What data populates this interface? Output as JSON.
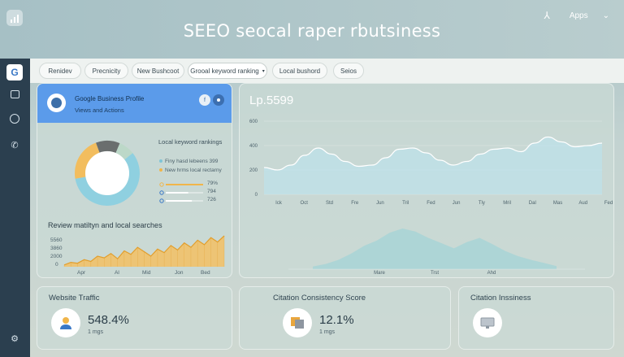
{
  "header": {
    "title": "SEEO seocal raper rbutsiness",
    "apps_label": "Apps",
    "apps_icon": "person-icon",
    "chevron_icon": "chevron-down-icon"
  },
  "sidebar": {
    "items": [
      {
        "icon": "google-g-icon",
        "glyph": "G",
        "active": true
      },
      {
        "icon": "calendar-icon",
        "glyph": "▦",
        "active": false
      },
      {
        "icon": "bolt-icon",
        "glyph": "ϟ",
        "active": false
      },
      {
        "icon": "phone-icon",
        "glyph": "✆",
        "active": false
      },
      {
        "icon": "settings-icon",
        "glyph": "⚙",
        "active": false
      }
    ]
  },
  "toolbar": {
    "chips": [
      {
        "label": "Renidev"
      },
      {
        "label": "Precnicity"
      },
      {
        "label": "New Bushcoot"
      },
      {
        "label": "Grooal keyword ranking"
      },
      {
        "label": "Local bushord"
      },
      {
        "label": "Seios"
      }
    ],
    "dropdown_icon": "chevron-down-icon"
  },
  "profile_card": {
    "title": "Google Business Profile",
    "subtitle": "Views and Actions",
    "badge_1": "f",
    "badge_2": "",
    "keyword_heading": "Local keyword rankings",
    "legend": [
      {
        "label": "Finy hasd lebeens 399",
        "color": "#7fc4d6"
      },
      {
        "label": "New hrms local rectarny",
        "color": "#f0b54a"
      }
    ],
    "bars": [
      {
        "value": "79%",
        "fill": 1.0,
        "color": "#f0b54a"
      },
      {
        "value": "794",
        "fill": 0.6,
        "color": "#ffffff"
      },
      {
        "value": "726",
        "fill": 0.7,
        "color": "#ffffff"
      }
    ],
    "donut": [
      {
        "value": 58,
        "color": "#8fd0e0"
      },
      {
        "value": 22,
        "color": "#f2bd5e"
      },
      {
        "value": 12,
        "color": "#6a6e6e"
      },
      {
        "value": 8,
        "color": "#bcd8c8"
      }
    ],
    "area_heading": "Review matiltyn and local searches",
    "area_y_ticks": [
      "5560",
      "3860",
      "2000",
      "0"
    ],
    "area_x_ticks": [
      "Apr",
      "Al",
      "Mid",
      "Jon",
      "Bed"
    ],
    "area_values": [
      2,
      5,
      4,
      8,
      6,
      12,
      10,
      15,
      9,
      18,
      14,
      22,
      17,
      12,
      20,
      16,
      24,
      19,
      27,
      22,
      30,
      25,
      33,
      28,
      35
    ]
  },
  "main_card": {
    "title": "Lp.5599",
    "chart_data": {
      "type": "area",
      "y_ticks": [
        "600",
        "400",
        "200",
        "0"
      ],
      "x_ticks": [
        "Ick",
        "Oct",
        "Std",
        "Fre",
        "Jun",
        "Tril",
        "Fed",
        "Jun",
        "Tly",
        "Mril",
        "Dal",
        "Mas",
        "Aud",
        "Fed"
      ],
      "values": [
        220,
        200,
        240,
        320,
        380,
        330,
        270,
        230,
        240,
        300,
        370,
        380,
        340,
        280,
        240,
        270,
        330,
        370,
        380,
        350,
        420,
        470,
        430,
        390,
        400,
        420
      ],
      "ylim": [
        0,
        600
      ]
    },
    "secondary_area": {
      "values": [
        5,
        10,
        18,
        30,
        45,
        55,
        70,
        78,
        72,
        60,
        50,
        40,
        52,
        60,
        48,
        35,
        25,
        18,
        12,
        6
      ],
      "x_ticks": [
        "Mare",
        "Trst",
        "Ahd"
      ]
    }
  },
  "metrics": [
    {
      "title": "Website Traffic",
      "value": "548.4%",
      "sub": "1 mgs",
      "icon": "user-icon"
    },
    {
      "title": "Citation Consistency Score",
      "value": "12.1%",
      "sub": "1 mgs",
      "icon": "documents-icon"
    },
    {
      "title": "Citation Inssiness",
      "value": "",
      "sub": "",
      "icon": "monitor-icon"
    }
  ],
  "colors": {
    "accent_blue": "#5b9bea",
    "orange": "#f0b54a",
    "teal": "#8fd0e0",
    "sidebar_bg": "#2b3f4f"
  }
}
